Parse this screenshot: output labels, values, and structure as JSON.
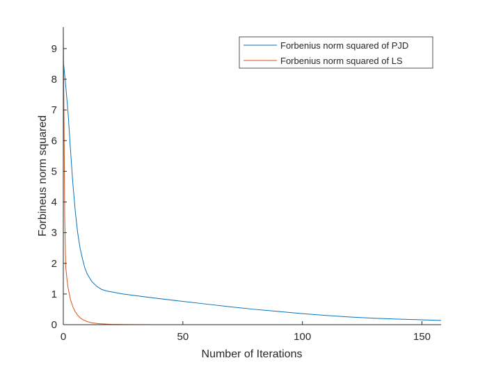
{
  "chart_data": {
    "type": "line",
    "title": "",
    "xlabel": "Number of Iterations",
    "ylabel": "Forbineus norm squared",
    "xlim": [
      0,
      158
    ],
    "ylim": [
      0,
      9.7
    ],
    "xticks": [
      0,
      50,
      100,
      150
    ],
    "yticks": [
      0,
      1,
      2,
      3,
      4,
      5,
      6,
      7,
      8,
      9
    ],
    "grid": false,
    "legend_position": "top-right",
    "series": [
      {
        "name": "Forbenius norm squared of PJD",
        "color": "#0072BD",
        "x": [
          0,
          1,
          2,
          3,
          4,
          5,
          6,
          7,
          8,
          9,
          10,
          12,
          14,
          16,
          18,
          20,
          25,
          30,
          40,
          50,
          60,
          70,
          80,
          90,
          100,
          110,
          120,
          130,
          140,
          150,
          158
        ],
        "y": [
          8.6,
          7.8,
          6.9,
          5.7,
          4.6,
          3.7,
          3.0,
          2.5,
          2.15,
          1.85,
          1.65,
          1.4,
          1.25,
          1.15,
          1.1,
          1.07,
          1.0,
          0.95,
          0.85,
          0.76,
          0.67,
          0.58,
          0.5,
          0.43,
          0.36,
          0.3,
          0.25,
          0.21,
          0.18,
          0.16,
          0.14
        ]
      },
      {
        "name": "Forbenius norm squared of LS",
        "color": "#D95319",
        "x": [
          0,
          0.3,
          0.6,
          1,
          1.5,
          2,
          3,
          4,
          5,
          6,
          7,
          8,
          10,
          12,
          15,
          20,
          25,
          30,
          40,
          60,
          80,
          100,
          120,
          140,
          158
        ],
        "y": [
          9.65,
          6.5,
          3.5,
          1.9,
          1.5,
          1.2,
          0.82,
          0.58,
          0.42,
          0.31,
          0.23,
          0.17,
          0.1,
          0.06,
          0.03,
          0.012,
          0.005,
          0.002,
          0.0,
          0.0,
          0.0,
          0.0,
          0.0,
          0.0,
          0.0
        ]
      }
    ]
  }
}
